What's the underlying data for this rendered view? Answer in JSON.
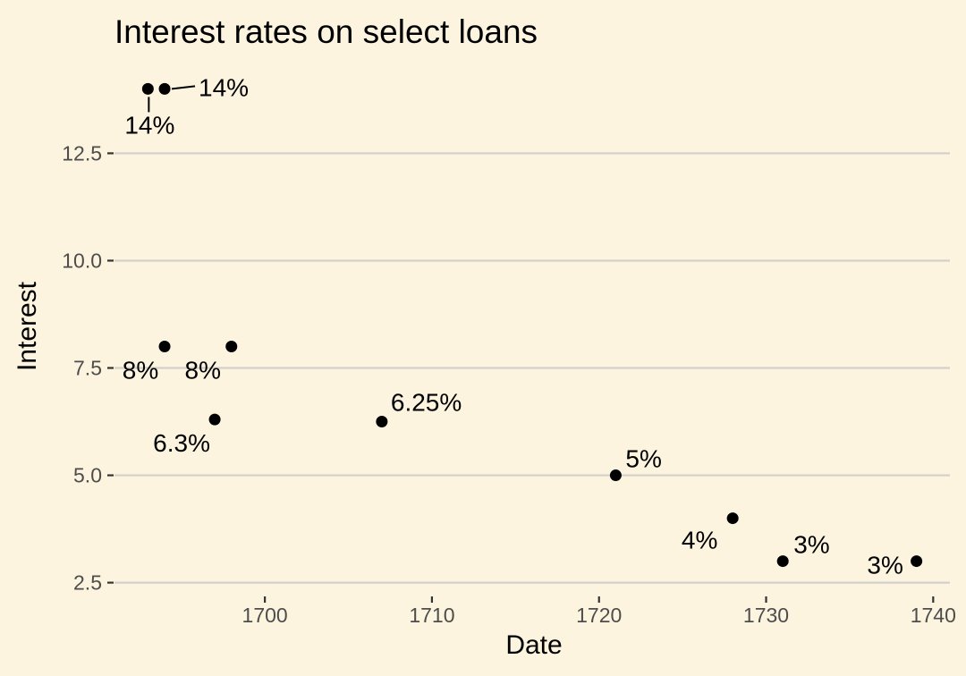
{
  "chart_data": {
    "type": "scatter",
    "title": "Interest rates on select loans",
    "xlabel": "Date",
    "ylabel": "Interest",
    "xlim": [
      1691,
      1741
    ],
    "ylim": [
      2.2,
      14.3
    ],
    "x_ticks": [
      1700,
      1710,
      1720,
      1730,
      1740
    ],
    "x_tick_labels": [
      "1700",
      "1710",
      "1720",
      "1730",
      "1740"
    ],
    "y_ticks": [
      2.5,
      5.0,
      7.5,
      10.0,
      12.5
    ],
    "y_tick_labels": [
      "2.5",
      "5.0",
      "7.5",
      "10.0",
      "12.5"
    ],
    "grid": "horizontal-major",
    "point_color": "#000000",
    "points": [
      {
        "x": 1693,
        "y": 14,
        "label": "14%"
      },
      {
        "x": 1694,
        "y": 14,
        "label": "14%"
      },
      {
        "x": 1694,
        "y": 8,
        "label": "8%"
      },
      {
        "x": 1698,
        "y": 8,
        "label": "8%"
      },
      {
        "x": 1697,
        "y": 6.3,
        "label": "6.3%"
      },
      {
        "x": 1707,
        "y": 6.25,
        "label": "6.25%"
      },
      {
        "x": 1721,
        "y": 5,
        "label": "5%"
      },
      {
        "x": 1728,
        "y": 4,
        "label": "4%"
      },
      {
        "x": 1731,
        "y": 3,
        "label": "3%"
      },
      {
        "x": 1739,
        "y": 3,
        "label": "3%"
      }
    ]
  }
}
